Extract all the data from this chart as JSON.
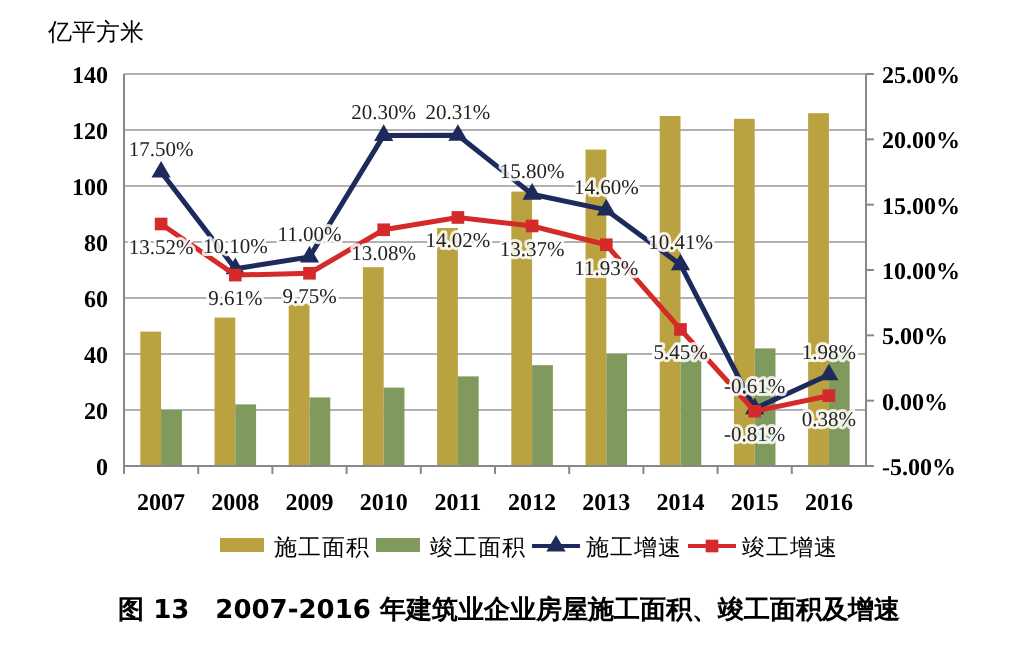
{
  "chart_data": {
    "type": "bar",
    "title": "图 13　2007-2016 年建筑业企业房屋施工面积、竣工面积及增速",
    "ylabel": "亿平方米",
    "categories": [
      "2007",
      "2008",
      "2009",
      "2010",
      "2011",
      "2012",
      "2013",
      "2014",
      "2015",
      "2016"
    ],
    "series": [
      {
        "name": "施工面积",
        "color": "#b9a23f",
        "values": [
          48,
          53,
          58,
          71,
          85,
          98,
          113,
          125,
          124,
          126
        ]
      },
      {
        "name": "竣工面积",
        "color": "#7f9a5c",
        "values": [
          20,
          22,
          24.5,
          28,
          32,
          36,
          40,
          42,
          42,
          42
        ]
      },
      {
        "name": "施工增速",
        "type": "line",
        "axis": "y2",
        "marker": "triangle",
        "color": "#1f2a5c",
        "values": [
          17.5,
          10.1,
          11.0,
          20.3,
          20.31,
          15.8,
          14.6,
          10.41,
          -0.61,
          1.98
        ],
        "value_labels": [
          "17.50%",
          "10.10%",
          "11.00%",
          "20.30%",
          "20.31%",
          "15.80%",
          "14.60%",
          "10.41%",
          "-0.61%",
          "1.98%"
        ]
      },
      {
        "name": "竣工增速",
        "type": "line",
        "axis": "y2",
        "marker": "square",
        "color": "#d42a2a",
        "values": [
          13.52,
          9.61,
          9.75,
          13.08,
          14.02,
          13.37,
          11.93,
          5.45,
          -0.81,
          0.38
        ],
        "value_labels": [
          "13.52%",
          "9.61%",
          "9.75%",
          "13.08%",
          "14.02%",
          "13.37%",
          "11.93%",
          "5.45%",
          "-0.81%",
          "0.38%"
        ]
      }
    ],
    "ylim": [
      0,
      140
    ],
    "yticks": [
      0,
      20,
      40,
      60,
      80,
      100,
      120,
      140
    ],
    "y2lim": [
      -5,
      25
    ],
    "y2ticks": [
      {
        "value": -5,
        "label": "-5.00%"
      },
      {
        "value": 0,
        "label": "0.00%"
      },
      {
        "value": 5,
        "label": "5.00%"
      },
      {
        "value": 10,
        "label": "10.00%"
      },
      {
        "value": 15,
        "label": "15.00%"
      },
      {
        "value": 20,
        "label": "20.00%"
      },
      {
        "value": 25,
        "label": "25.00%"
      }
    ],
    "grid": "y",
    "legend": "bottom"
  }
}
